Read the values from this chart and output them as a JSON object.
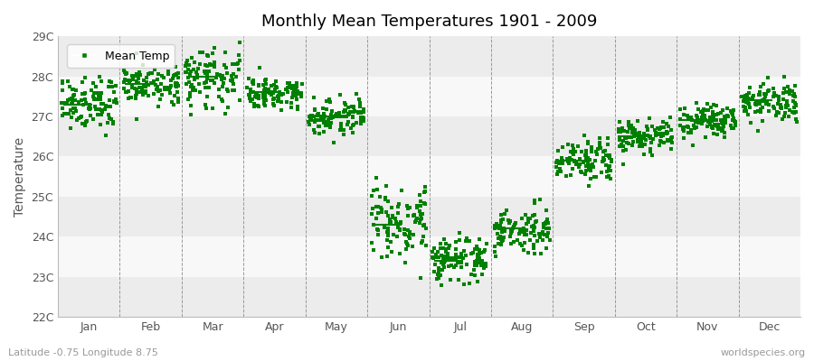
{
  "title": "Monthly Mean Temperatures 1901 - 2009",
  "ylabel": "Temperature",
  "xlabel_bottom_left": "Latitude -0.75 Longitude 8.75",
  "xlabel_bottom_right": "worldspecies.org",
  "ylim": [
    22,
    29
  ],
  "yticks": [
    22,
    23,
    24,
    25,
    26,
    27,
    28,
    29
  ],
  "months": [
    "Jan",
    "Feb",
    "Mar",
    "Apr",
    "May",
    "Jun",
    "Jul",
    "Aug",
    "Sep",
    "Oct",
    "Nov",
    "Dec"
  ],
  "marker_color": "#008000",
  "marker_size": 2.5,
  "background_color": "#ffffff",
  "band_light": "#ebebeb",
  "band_dark": "#e0e0e0",
  "col_band_light": "#f8f8f8",
  "col_band_dark": "#ececec",
  "legend_label": "Mean Temp",
  "monthly_means": [
    27.3,
    27.8,
    28.0,
    27.6,
    27.0,
    24.3,
    23.4,
    24.2,
    25.9,
    26.5,
    26.9,
    27.4
  ],
  "monthly_spreads": [
    0.6,
    0.5,
    0.7,
    0.4,
    0.5,
    0.9,
    0.6,
    0.6,
    0.5,
    0.4,
    0.4,
    0.5
  ],
  "n_years": 109
}
